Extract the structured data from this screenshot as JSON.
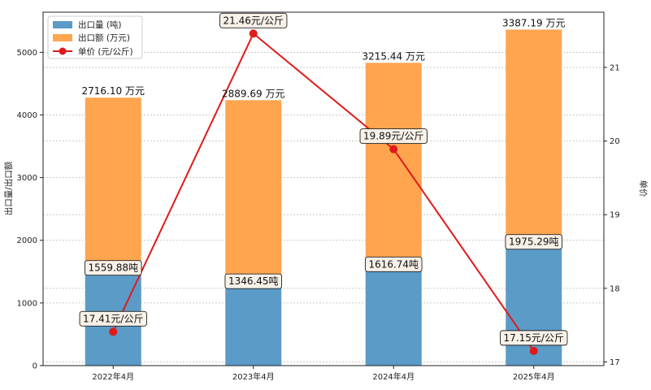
{
  "chart_data": {
    "type": "bar",
    "categories": [
      "2022年4月",
      "2023年4月",
      "2024年4月",
      "2025年4月"
    ],
    "series": [
      {
        "name": "出口量 (吨)",
        "type": "bar",
        "stack": "main",
        "axis": "left",
        "color": "#5b9bc8",
        "values": [
          1559.88,
          1346.45,
          1616.74,
          1975.29
        ],
        "labels": [
          "1559.88吨",
          "1346.45吨",
          "1616.74吨",
          "1975.29吨"
        ]
      },
      {
        "name": "出口额 (万元)",
        "type": "bar",
        "stack": "main",
        "axis": "left",
        "color": "#ffa54f",
        "values": [
          2716.1,
          2889.69,
          3215.44,
          3387.19
        ],
        "labels": [
          "2716.10 万元",
          "2889.69 万元",
          "3215.44 万元",
          "3387.19 万元"
        ]
      },
      {
        "name": "单价 (元/公斤)",
        "type": "line",
        "axis": "right",
        "color": "#e01a1a",
        "values": [
          17.41,
          21.46,
          19.89,
          17.15
        ],
        "labels": [
          "17.41元/公斤",
          "21.46元/公斤",
          "19.89元/公斤",
          "17.15元/公斤"
        ]
      }
    ],
    "ylabel": "出口量/出口额",
    "y2label": "单价",
    "ylim": [
      0,
      5640
    ],
    "y2lim": [
      16.95,
      21.75
    ],
    "yticks": [
      0,
      1000,
      2000,
      3000,
      4000,
      5000
    ],
    "y2ticks": [
      17,
      18,
      19,
      20,
      21
    ],
    "grid": true,
    "legend_position": "top-left"
  }
}
